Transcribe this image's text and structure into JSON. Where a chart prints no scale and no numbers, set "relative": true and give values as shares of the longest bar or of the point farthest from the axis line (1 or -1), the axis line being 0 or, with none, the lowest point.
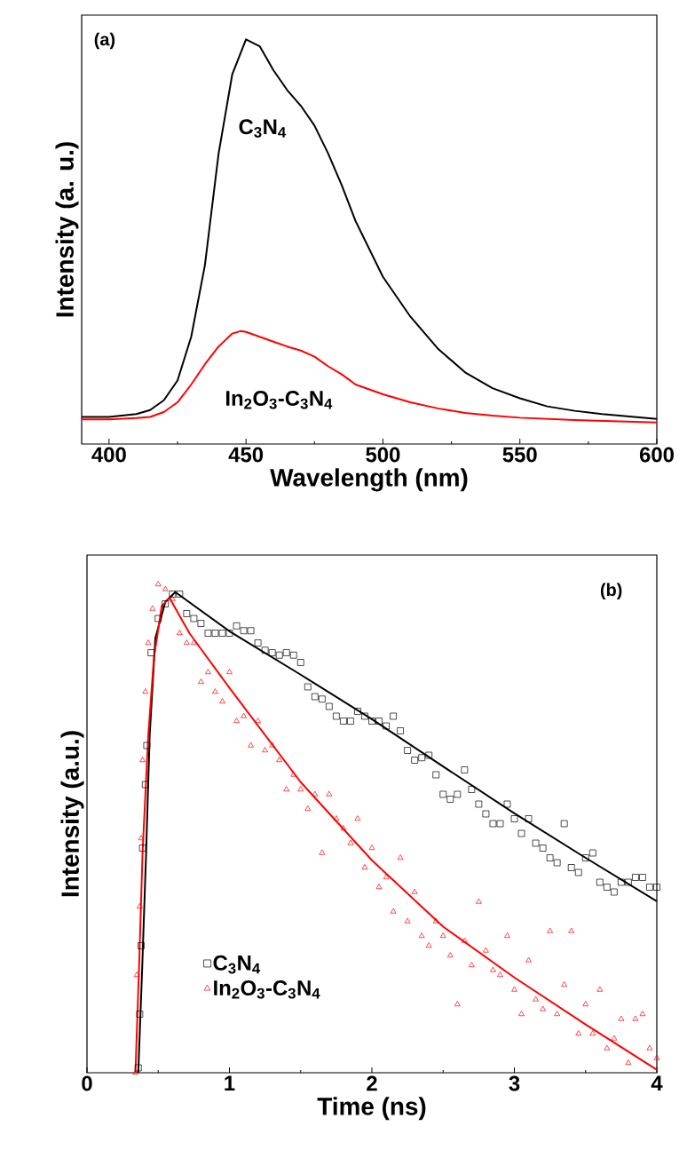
{
  "chart_data": [
    {
      "type": "line",
      "xlabel": "Wavelength (nm)",
      "ylabel": "Intensity (a. u.)",
      "relative": true,
      "xlim": [
        390,
        600
      ],
      "xticks": [
        400,
        450,
        500,
        550,
        600
      ],
      "annotations": [
        "(a)"
      ],
      "series": [
        {
          "name": "C$_{3}$N$_{4}$",
          "color": "#000000",
          "x": [
            390,
            400,
            410,
            415,
            420,
            425,
            430,
            435,
            440,
            445,
            450,
            455,
            460,
            465,
            470,
            475,
            480,
            485,
            490,
            495,
            500,
            510,
            520,
            530,
            540,
            550,
            560,
            570,
            580,
            590,
            600
          ],
          "values": [
            0.067,
            0.067,
            0.074,
            0.084,
            0.108,
            0.157,
            0.265,
            0.442,
            0.718,
            0.914,
            1.0,
            0.983,
            0.924,
            0.875,
            0.836,
            0.787,
            0.718,
            0.639,
            0.551,
            0.482,
            0.413,
            0.315,
            0.236,
            0.177,
            0.138,
            0.113,
            0.093,
            0.082,
            0.074,
            0.068,
            0.062
          ]
        },
        {
          "name": "In$_{2}$O$_{3}$-C$_{3}$N$_{4}$",
          "color": "#ff0000",
          "x": [
            390,
            400,
            410,
            415,
            420,
            425,
            430,
            435,
            440,
            445,
            448,
            450,
            455,
            460,
            465,
            470,
            475,
            480,
            485,
            490,
            500,
            510,
            520,
            530,
            540,
            550,
            570,
            600
          ],
          "values": [
            0.061,
            0.061,
            0.064,
            0.067,
            0.079,
            0.103,
            0.147,
            0.197,
            0.241,
            0.273,
            0.279,
            0.277,
            0.265,
            0.253,
            0.241,
            0.231,
            0.216,
            0.192,
            0.172,
            0.147,
            0.123,
            0.103,
            0.088,
            0.077,
            0.07,
            0.065,
            0.059,
            0.053
          ]
        }
      ]
    },
    {
      "type": "scatter",
      "xlabel": "Time (ns)",
      "ylabel": "Intensity (a.u.)",
      "relative": true,
      "xlim": [
        0,
        4
      ],
      "xticks": [
        0,
        1,
        2,
        3,
        4
      ],
      "annotations": [
        "(b)"
      ],
      "legend": "bottom left",
      "series": [
        {
          "name": "C$_{3}$N$_{4}$",
          "color": "#000000",
          "marker": "square",
          "x": [
            0.36,
            0.37,
            0.38,
            0.39,
            0.41,
            0.42,
            0.45,
            0.5,
            0.55,
            0.6,
            0.65,
            0.7,
            0.75,
            0.8,
            0.85,
            0.9,
            0.95,
            1.0,
            1.05,
            1.1,
            1.15,
            1.2,
            1.25,
            1.3,
            1.35,
            1.4,
            1.45,
            1.5,
            1.55,
            1.6,
            1.65,
            1.7,
            1.75,
            1.8,
            1.85,
            1.9,
            1.95,
            2.0,
            2.05,
            2.1,
            2.15,
            2.2,
            2.25,
            2.3,
            2.35,
            2.4,
            2.45,
            2.5,
            2.55,
            2.6,
            2.65,
            2.7,
            2.75,
            2.8,
            2.85,
            2.9,
            2.95,
            3.0,
            3.05,
            3.1,
            3.15,
            3.2,
            3.25,
            3.3,
            3.35,
            3.4,
            3.45,
            3.5,
            3.55,
            3.6,
            3.65,
            3.7,
            3.75,
            3.8,
            3.85,
            3.9,
            3.95,
            4.0
          ],
          "values": [
            0.01,
            0.12,
            0.26,
            0.46,
            0.59,
            0.67,
            0.86,
            0.93,
            0.96,
            0.98,
            0.98,
            0.94,
            0.93,
            0.92,
            0.9,
            0.9,
            0.9,
            0.9,
            0.915,
            0.905,
            0.905,
            0.88,
            0.865,
            0.86,
            0.855,
            0.86,
            0.855,
            0.84,
            0.79,
            0.77,
            0.765,
            0.75,
            0.73,
            0.72,
            0.72,
            0.74,
            0.73,
            0.72,
            0.72,
            0.71,
            0.73,
            0.7,
            0.66,
            0.64,
            0.645,
            0.65,
            0.61,
            0.57,
            0.56,
            0.57,
            0.62,
            0.58,
            0.55,
            0.53,
            0.51,
            0.51,
            0.55,
            0.52,
            0.49,
            0.52,
            0.47,
            0.46,
            0.44,
            0.43,
            0.51,
            0.42,
            0.41,
            0.44,
            0.45,
            0.39,
            0.38,
            0.37,
            0.39,
            0.39,
            0.4,
            0.4,
            0.38,
            0.38
          ]
        },
        {
          "name": "In$_{2}$O$_{3}$-C$_{3}$N$_{4}$",
          "color": "#ff0000",
          "marker": "triangle",
          "x": [
            0.34,
            0.35,
            0.37,
            0.38,
            0.39,
            0.41,
            0.43,
            0.46,
            0.5,
            0.55,
            0.6,
            0.65,
            0.7,
            0.75,
            0.8,
            0.85,
            0.9,
            0.95,
            1.0,
            1.05,
            1.1,
            1.15,
            1.2,
            1.25,
            1.3,
            1.35,
            1.4,
            1.45,
            1.5,
            1.55,
            1.6,
            1.65,
            1.7,
            1.75,
            1.8,
            1.85,
            1.9,
            1.95,
            2.0,
            2.05,
            2.1,
            2.15,
            2.2,
            2.25,
            2.3,
            2.35,
            2.4,
            2.45,
            2.5,
            2.55,
            2.6,
            2.65,
            2.7,
            2.75,
            2.8,
            2.85,
            2.9,
            2.95,
            3.0,
            3.05,
            3.1,
            3.15,
            3.2,
            3.25,
            3.3,
            3.35,
            3.4,
            3.45,
            3.5,
            3.55,
            3.6,
            3.65,
            3.7,
            3.75,
            3.8,
            3.85,
            3.9,
            3.95,
            4.0
          ],
          "values": [
            0.0,
            0.2,
            0.34,
            0.48,
            0.64,
            0.78,
            0.88,
            0.95,
            1.0,
            0.99,
            0.97,
            0.9,
            0.88,
            0.88,
            0.8,
            0.82,
            0.78,
            0.76,
            0.82,
            0.72,
            0.73,
            0.67,
            0.72,
            0.66,
            0.67,
            0.64,
            0.58,
            0.61,
            0.58,
            0.54,
            0.57,
            0.45,
            0.57,
            0.52,
            0.5,
            0.47,
            0.52,
            0.42,
            0.46,
            0.38,
            0.4,
            0.33,
            0.44,
            0.31,
            0.37,
            0.28,
            0.26,
            0.31,
            0.28,
            0.24,
            0.14,
            0.27,
            0.22,
            0.35,
            0.25,
            0.21,
            0.2,
            0.28,
            0.17,
            0.12,
            0.23,
            0.15,
            0.13,
            0.29,
            0.12,
            0.18,
            0.29,
            0.08,
            0.14,
            0.08,
            0.17,
            0.05,
            0.07,
            0.11,
            0.02,
            0.11,
            0.12,
            0.05,
            0.03
          ]
        },
        {
          "type": "line",
          "color": "#000000",
          "x": [
            0.36,
            0.387,
            0.415,
            0.44,
            0.48,
            0.55,
            0.62,
            1.0,
            1.5,
            2.0,
            2.5,
            3.0,
            3.5,
            4.0
          ],
          "values": [
            0.0,
            0.21,
            0.45,
            0.69,
            0.89,
            0.964,
            0.984,
            0.904,
            0.815,
            0.724,
            0.627,
            0.531,
            0.44,
            0.351
          ]
        },
        {
          "type": "line",
          "color": "#ff0000",
          "x": [
            0.34,
            0.365,
            0.39,
            0.43,
            0.47,
            0.525,
            0.58,
            0.719,
            1.0,
            1.5,
            2.0,
            2.5,
            3.0,
            3.5,
            4.0
          ],
          "values": [
            0.0,
            0.21,
            0.45,
            0.69,
            0.85,
            0.956,
            0.972,
            0.9,
            0.788,
            0.595,
            0.435,
            0.299,
            0.195,
            0.099,
            0.006
          ]
        }
      ]
    }
  ]
}
